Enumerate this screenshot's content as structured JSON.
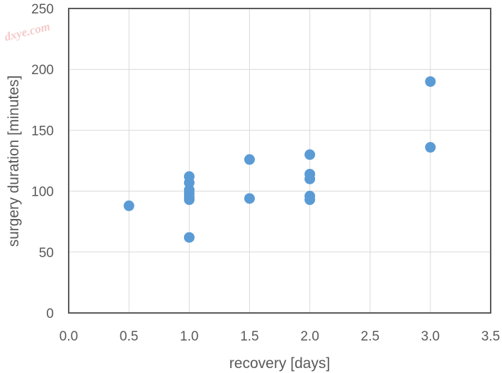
{
  "watermark": "dxye.com",
  "chart_data": {
    "type": "scatter",
    "title": "",
    "xlabel": "recovery [days]",
    "ylabel": "surgery duration [minutes]",
    "xlim": [
      0,
      3.5
    ],
    "ylim": [
      0,
      250
    ],
    "xticks": [
      "0.0",
      "0.5",
      "1.0",
      "1.5",
      "2.0",
      "2.5",
      "3.0",
      "3.5"
    ],
    "yticks": [
      "0",
      "50",
      "100",
      "150",
      "200",
      "250"
    ],
    "grid": true,
    "legend": "none",
    "color": "#5b9bd5",
    "series": [
      {
        "points": [
          {
            "x": 0.5,
            "y": 88
          },
          {
            "x": 1.0,
            "y": 112
          },
          {
            "x": 1.0,
            "y": 107
          },
          {
            "x": 1.0,
            "y": 101
          },
          {
            "x": 1.0,
            "y": 98
          },
          {
            "x": 1.0,
            "y": 95
          },
          {
            "x": 1.0,
            "y": 93
          },
          {
            "x": 1.0,
            "y": 62
          },
          {
            "x": 1.5,
            "y": 126
          },
          {
            "x": 1.5,
            "y": 94
          },
          {
            "x": 2.0,
            "y": 130
          },
          {
            "x": 2.0,
            "y": 114
          },
          {
            "x": 2.0,
            "y": 110
          },
          {
            "x": 2.0,
            "y": 96
          },
          {
            "x": 2.0,
            "y": 93
          },
          {
            "x": 3.0,
            "y": 190
          },
          {
            "x": 3.0,
            "y": 136
          }
        ]
      }
    ]
  }
}
